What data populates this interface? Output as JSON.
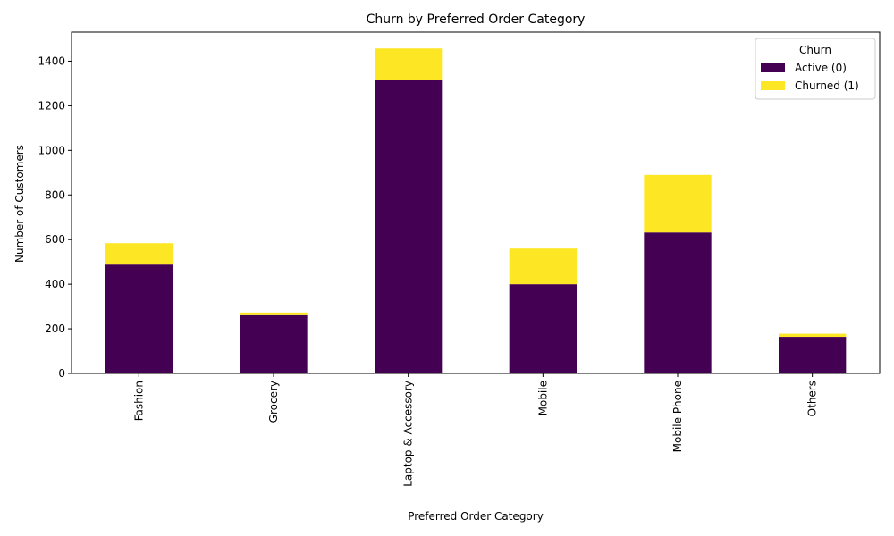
{
  "chart_data": {
    "type": "bar",
    "stacked": true,
    "title": "Churn by Preferred Order Category",
    "xlabel": "Preferred Order Category",
    "ylabel": "Number of Customers",
    "categories": [
      "Fashion",
      "Grocery",
      "Laptop & Accessory",
      "Mobile",
      "Mobile Phone",
      "Others"
    ],
    "series": [
      {
        "name": "Active (0)",
        "color": "#440154",
        "values": [
          488,
          261,
          1315,
          400,
          632,
          164
        ]
      },
      {
        "name": "Churned (1)",
        "color": "#fde725",
        "values": [
          96,
          12,
          142,
          160,
          258,
          14
        ]
      }
    ],
    "ylim": [
      0,
      1530
    ],
    "yticks": [
      0,
      200,
      400,
      600,
      800,
      1000,
      1200,
      1400
    ],
    "legend": {
      "title": "Churn",
      "placement": "top-right"
    },
    "grid": false
  }
}
